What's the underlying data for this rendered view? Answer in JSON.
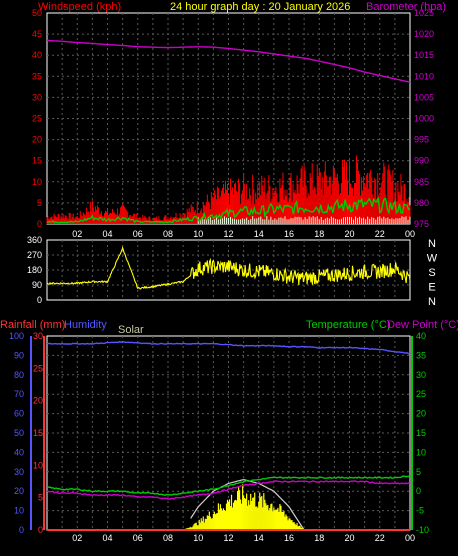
{
  "colors": {
    "bg": "#000000",
    "grid": "#5a5a5a",
    "windspeed": "#ff0000",
    "gust_fill": "#ff0000",
    "wind_avg": "#00cc00",
    "barometer": "#cc00cc",
    "direction": "#ffff00",
    "rainfall": "#ff3333",
    "humidity": "#5555ff",
    "solar": "#ffff00",
    "solar_label": "#c8c8a0",
    "temperature": "#00cc00",
    "dewpoint": "#cc00cc",
    "white": "#ffffff",
    "title": "#ffff00"
  },
  "header": {
    "windspeed_label": "Windspeed (kph)",
    "title": "24 hour graph day : 20 January 2026",
    "barometer_label": "Barometer (hpa)"
  },
  "lower_header": {
    "rainfall_label": "Rainfall (mm)",
    "humidity_label": "Humidity",
    "solar_label": "Solar",
    "temperature_label": "Temperature (°C)",
    "dewpoint_label": "Dew Point (°C)"
  },
  "compass": [
    "N",
    "W",
    "S",
    "E",
    "N"
  ],
  "x_ticks": [
    "02",
    "04",
    "06",
    "08",
    "10",
    "12",
    "14",
    "16",
    "18",
    "20",
    "22",
    "00"
  ],
  "chart_data": [
    {
      "type": "line",
      "title": "24 hour graph day : 20 January 2026",
      "ylabel": "Windspeed (kph)",
      "ylabel_right": "Barometer (hpa)",
      "ylim": [
        0,
        50
      ],
      "ylim_right": [
        975,
        1025
      ],
      "y_ticks": [
        0,
        5,
        10,
        15,
        20,
        25,
        30,
        35,
        40,
        45,
        50
      ],
      "y_ticks_right": [
        975,
        980,
        985,
        990,
        995,
        1000,
        1005,
        1010,
        1015,
        1020,
        1025
      ],
      "x_hours": [
        0,
        1,
        2,
        3,
        4,
        5,
        6,
        7,
        8,
        9,
        10,
        11,
        12,
        13,
        14,
        15,
        16,
        17,
        18,
        19,
        20,
        21,
        22,
        23,
        24
      ],
      "series": [
        {
          "name": "Barometer",
          "axis": "right",
          "values": [
            1018.5,
            1018.3,
            1018.0,
            1017.8,
            1017.5,
            1017.3,
            1017.0,
            1016.9,
            1016.8,
            1016.9,
            1017.0,
            1016.9,
            1016.6,
            1016.2,
            1015.8,
            1015.3,
            1014.8,
            1014.3,
            1013.6,
            1012.8,
            1012.0,
            1011.0,
            1010.2,
            1009.4,
            1008.6
          ]
        },
        {
          "name": "Wind gust",
          "axis": "left",
          "values": [
            2,
            2.5,
            2,
            5,
            3,
            4,
            2,
            1.5,
            2,
            3,
            5,
            7,
            9,
            10,
            10,
            10.5,
            11,
            12,
            12.5,
            13,
            13.5,
            14,
            13,
            11,
            9
          ]
        },
        {
          "name": "Wind average",
          "axis": "left",
          "values": [
            0.5,
            0.5,
            0.5,
            1.5,
            1,
            1.5,
            0.5,
            0.5,
            0.5,
            1,
            1.5,
            2,
            2.5,
            3,
            3,
            3.5,
            3.5,
            4,
            4,
            4,
            4.5,
            4.5,
            4.5,
            4,
            3.5
          ]
        }
      ]
    },
    {
      "type": "line",
      "title": "",
      "ylim": [
        0,
        360
      ],
      "y_ticks": [
        0,
        90,
        180,
        270,
        360
      ],
      "series": [
        {
          "name": "Wind direction",
          "values": [
            100,
            100,
            100,
            110,
            110,
            310,
            70,
            80,
            95,
            110,
            190,
            200,
            200,
            180,
            170,
            160,
            140,
            130,
            140,
            150,
            160,
            170,
            170,
            190,
            130
          ]
        }
      ]
    },
    {
      "type": "line",
      "title": "",
      "ylabel": "Rainfall (mm)",
      "ylim_rain": [
        0,
        30
      ],
      "ylim_humidity": [
        0,
        100
      ],
      "ylim_temp": [
        -10,
        40
      ],
      "y_ticks_humidity": [
        0,
        10,
        20,
        30,
        40,
        50,
        60,
        70,
        80,
        90,
        100
      ],
      "y_ticks_rain": [
        0,
        5,
        10,
        15,
        20,
        25,
        30
      ],
      "y_ticks_temp": [
        -10,
        -5,
        0,
        5,
        10,
        15,
        20,
        25,
        30,
        35,
        40
      ],
      "series": [
        {
          "name": "Humidity",
          "axis": "humidity",
          "values": [
            96,
            96,
            96,
            96,
            96.5,
            97,
            96.5,
            96,
            96,
            96,
            96,
            96,
            95.5,
            95,
            95,
            95,
            94.5,
            94.5,
            94,
            94,
            94,
            93.5,
            93,
            92,
            91
          ]
        },
        {
          "name": "Temperature",
          "axis": "temp",
          "values": [
            1,
            0.5,
            0.5,
            0,
            0,
            0,
            -0.5,
            -0.5,
            -1,
            -0.5,
            0,
            0.5,
            1.5,
            2.5,
            3,
            3.5,
            3.5,
            3.5,
            3.5,
            3.5,
            3.5,
            3.5,
            3.5,
            3.5,
            4
          ]
        },
        {
          "name": "Dew Point",
          "axis": "temp",
          "values": [
            0,
            -0.5,
            -0.5,
            -1,
            -1,
            -1,
            -1.5,
            -1.5,
            -2,
            -1.5,
            -1,
            -0.5,
            0.5,
            1.5,
            2,
            2.5,
            2.5,
            2.5,
            2.5,
            2.5,
            2.5,
            2.5,
            2,
            2,
            2
          ]
        },
        {
          "name": "Solar",
          "axis": "humidity",
          "values": [
            0,
            0,
            0,
            0,
            0,
            0,
            0,
            0,
            0,
            0,
            4,
            10,
            16,
            20,
            17,
            14,
            7,
            0,
            0,
            0,
            0,
            0,
            0,
            0,
            0
          ]
        },
        {
          "name": "Solar max",
          "axis": "humidity",
          "values": [
            0,
            0,
            0,
            0,
            0,
            0,
            0,
            0,
            0,
            0,
            12,
            20,
            24,
            26,
            24,
            20,
            12,
            0,
            0,
            0,
            0,
            0,
            0,
            0,
            0
          ]
        },
        {
          "name": "Rainfall",
          "axis": "rain",
          "values": [
            0,
            0,
            0,
            0,
            0,
            0,
            0,
            0,
            0,
            0,
            0,
            0,
            0,
            0,
            0,
            0,
            0,
            0,
            0,
            0,
            0,
            0,
            0,
            0,
            0
          ]
        }
      ]
    }
  ]
}
